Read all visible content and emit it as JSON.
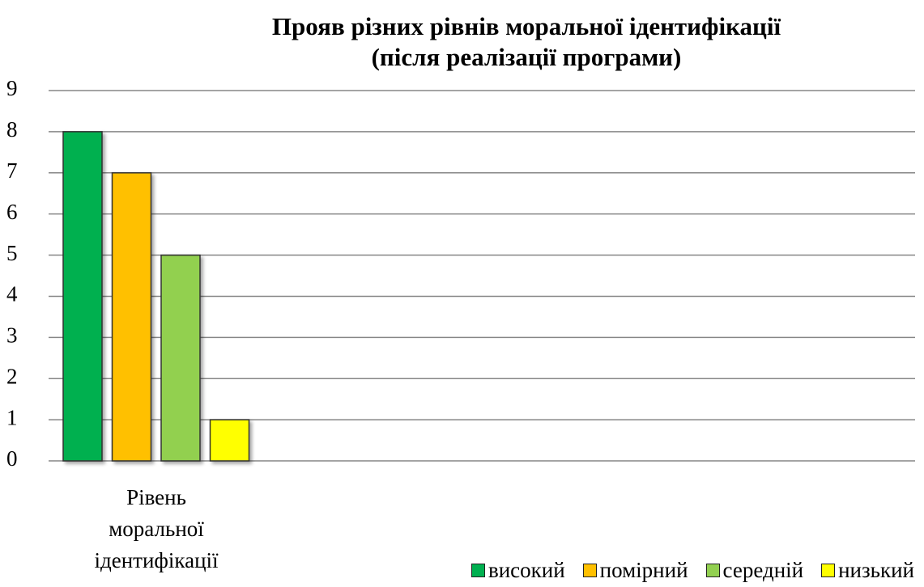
{
  "chart_data": {
    "type": "bar",
    "title": "Прояв різних рівнів моральної ідентифікації\n(після реалізації програми)",
    "categories": [
      "Рівень моральної ідентифікації"
    ],
    "series": [
      {
        "name": "високий",
        "color": "#00b050",
        "values": [
          8
        ]
      },
      {
        "name": "помірний",
        "color": "#ffc000",
        "values": [
          7
        ]
      },
      {
        "name": "середній",
        "color": "#92d050",
        "values": [
          5
        ]
      },
      {
        "name": "низький",
        "color": "#ffff00",
        "values": [
          1
        ]
      }
    ],
    "ylim": [
      0,
      9
    ],
    "yticks": [
      0,
      1,
      2,
      3,
      4,
      5,
      6,
      7,
      8,
      9
    ],
    "grid": true,
    "legend": "bottom"
  }
}
